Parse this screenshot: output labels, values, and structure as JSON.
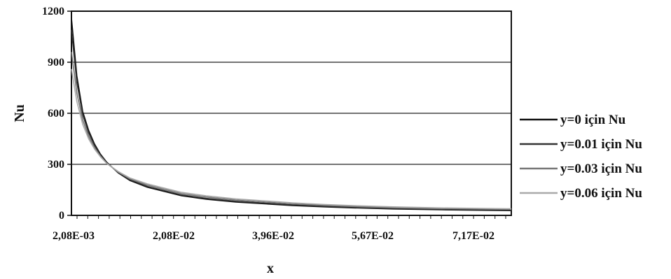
{
  "chart_data": {
    "type": "line",
    "xlabel": "x",
    "ylabel": "Nu",
    "ylim": [
      0,
      1200
    ],
    "yticks": [
      0,
      300,
      600,
      900,
      1200
    ],
    "yticks_labels": [
      "0",
      "300",
      "600",
      "900",
      "1200"
    ],
    "x_tick_labels": [
      "2,08E-03",
      "2,08E-02",
      "3,96E-02",
      "5,67E-02",
      "7,17E-02"
    ],
    "xlim": [
      0.00208,
      0.0768
    ],
    "grid": "horizontal",
    "legend_position": "right",
    "x": [
      0.00208,
      0.003,
      0.004,
      0.005,
      0.006,
      0.007,
      0.008,
      0.01,
      0.012,
      0.015,
      0.0208,
      0.025,
      0.03,
      0.0396,
      0.045,
      0.05,
      0.0567,
      0.065,
      0.0717,
      0.0768
    ],
    "series": [
      {
        "name": "y=0 için Nu",
        "color": "#111111",
        "values": [
          1160,
          820,
          610,
          500,
          420,
          360,
          315,
          250,
          205,
          165,
          115,
          95,
          78,
          58,
          50,
          44,
          38,
          33,
          30,
          28
        ]
      },
      {
        "name": "y=0.01 için Nu",
        "color": "#333333",
        "values": [
          1090,
          780,
          590,
          485,
          410,
          355,
          312,
          252,
          210,
          170,
          120,
          100,
          83,
          62,
          54,
          47,
          41,
          36,
          33,
          31
        ]
      },
      {
        "name": "y=0.03 için Nu",
        "color": "#777777",
        "values": [
          960,
          720,
          560,
          465,
          398,
          348,
          308,
          255,
          215,
          178,
          128,
          108,
          90,
          68,
          59,
          52,
          45,
          40,
          37,
          35
        ]
      },
      {
        "name": "y=0.06 için Nu",
        "color": "#aaaaaa",
        "values": [
          860,
          670,
          535,
          450,
          390,
          344,
          308,
          258,
          220,
          185,
          135,
          115,
          97,
          74,
          64,
          57,
          50,
          44,
          41,
          39
        ]
      }
    ]
  }
}
